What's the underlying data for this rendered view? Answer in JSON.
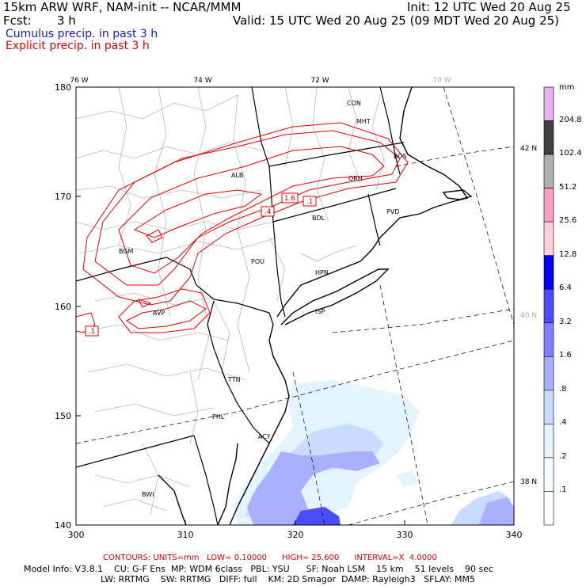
{
  "header": {
    "model": "15km ARW WRF, NAM-init -- NCAR/MMM",
    "init": "Init: 12 UTC Wed 20 Aug 25",
    "fcst_label": "Fcst:",
    "fcst_value": "3 h",
    "valid": "Valid: 15 UTC Wed 20 Aug 25 (09 MDT Wed 20 Aug 25)",
    "legend_cumulus": "Cumulus precip. in past 3 h",
    "legend_explicit": "Explicit precip. in past 3 h"
  },
  "colors": {
    "cumulus_text": "#1a1aa0",
    "explicit": "#dd0000",
    "coast": "#000000",
    "county": "#b0b0b0"
  },
  "axes": {
    "x_ticks": [
      "300",
      "310",
      "320",
      "330",
      "340"
    ],
    "y_ticks": [
      "180",
      "170",
      "160",
      "150",
      "140"
    ],
    "lon_labels": [
      "76 W",
      "74 W",
      "72 W",
      "70 W"
    ],
    "lat_labels": [
      "42 N",
      "40 N",
      "38 N"
    ]
  },
  "cities": [
    "CON",
    "MHT",
    "BOS",
    "ALB",
    "ORH",
    "PVD",
    "BDL",
    "BGM",
    "POU",
    "HPN",
    "ISP",
    "AVP",
    "TTN",
    "PHL",
    "ACY",
    "BWI"
  ],
  "contour_labels": [
    "1.6",
    ".1",
    ".4",
    ".1"
  ],
  "colorbar": {
    "unit": "mm",
    "levels": [
      "204.8",
      "102.4",
      "51.2",
      "25.6",
      "12.8",
      "6.4",
      "3.2",
      "1.6",
      ".8",
      ".4",
      ".2",
      ".1"
    ],
    "colors": [
      "#e8b0f0",
      "#404040",
      "#b0b0b0",
      "#ff9ec0",
      "#ffd0dc",
      "#0000ff",
      "#4c4cff",
      "#8080ff",
      "#a8b0ff",
      "#c8dcff",
      "#e4f4ff",
      "#f4fcff",
      "#ffffff"
    ]
  },
  "footer": {
    "contours_line": "CONTOURS: UNITS=mm   LOW= 0.10000      HIGH= 25.600      INTERVAL=X  4.0000",
    "model_info_1": "Model Info: V3.8.1    CU: G-F Ens  MP: WDM 6class   PBL: YSU      SF: Noah LSM    15 km    51 levels    90 sec",
    "model_info_2": "LW: RRTMG    SW: RRTMG   DIFF: full    KM: 2D Smagor  DAMP: Rayleigh3   SFLAY: MM5"
  }
}
